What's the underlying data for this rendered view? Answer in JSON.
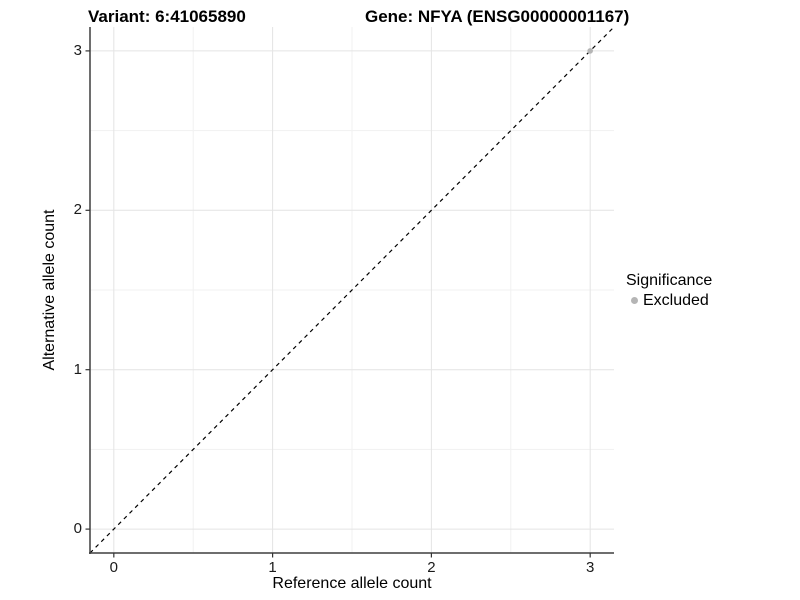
{
  "chart_data": {
    "type": "scatter",
    "title_left": "Variant: 6:41065890",
    "title_right": "Gene: NFYA (ENSG00000001167)",
    "xlabel": "Reference allele count",
    "ylabel": "Alternative allele count",
    "xlim": [
      -0.15,
      3.15
    ],
    "ylim": [
      -0.15,
      3.15
    ],
    "x_major_ticks": [
      0,
      1,
      2,
      3
    ],
    "y_major_ticks": [
      0,
      1,
      2,
      3
    ],
    "x_minor_ticks": [
      0.5,
      1.5,
      2.5
    ],
    "y_minor_ticks": [
      0.5,
      1.5,
      2.5
    ],
    "grid": true,
    "identity_line": {
      "slope": 1,
      "intercept": 0,
      "style": "dashed",
      "color": "#000000"
    },
    "series": [
      {
        "name": "Excluded",
        "color": "#b5b5b5",
        "points": [
          {
            "x": 3,
            "y": 3
          }
        ]
      }
    ],
    "legend": {
      "position": "right",
      "title": "Significance",
      "items": [
        {
          "label": "Excluded",
          "color": "#b5b5b5"
        }
      ]
    },
    "colors": {
      "background": "#ffffff",
      "grid_major": "#e4e4e4",
      "grid_minor": "#f1f1f1",
      "axis_line": "#3f3f3f",
      "tick_mark": "#333333",
      "tick_text": "#1a1a1a"
    }
  }
}
